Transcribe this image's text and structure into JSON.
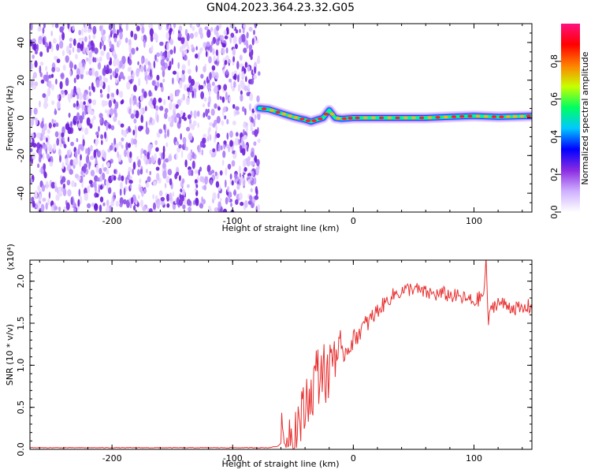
{
  "figure": {
    "title": "GN04.2023.364.23.32.G05"
  },
  "chart_data": [
    {
      "type": "heatmap",
      "title": "GN04.2023.364.23.32.G05",
      "xlabel": "Height of straight line (km)",
      "ylabel": "Frequency (Hz)",
      "xlim": [
        -268,
        148
      ],
      "ylim": [
        -50,
        50
      ],
      "x_ticks": [
        -200,
        -100,
        0,
        100
      ],
      "x_tick_labels": [
        "-200",
        "-100",
        "0",
        "100"
      ],
      "y_ticks": [
        -40,
        -20,
        0,
        20,
        40
      ],
      "y_tick_labels": [
        "-40",
        "-20",
        "0",
        "20",
        "40"
      ],
      "noise_region_x": [
        -268,
        -78
      ],
      "signal_track": {
        "x": [
          -78,
          -70,
          -60,
          -50,
          -40,
          -35,
          -30,
          -25,
          -20,
          -15,
          -10,
          0,
          20,
          40,
          60,
          80,
          100,
          120,
          148
        ],
        "frequency": [
          5,
          4.5,
          2.5,
          0.5,
          -1,
          -2,
          -1,
          0,
          4,
          0,
          -0.5,
          0,
          0,
          0,
          0,
          0.5,
          1,
          0.5,
          1
        ]
      },
      "colorbar": {
        "label": "Normalized spectral amplitude",
        "range": [
          0,
          1
        ],
        "ticks": [
          0,
          0.2,
          0.4,
          0.6,
          0.8
        ],
        "tick_labels": [
          "0.0",
          "0.2",
          "0.4",
          "0.6",
          "0.8"
        ],
        "colors": [
          "#ffffff",
          "#cfb0ff",
          "#8a2be2",
          "#0000ff",
          "#00c8ff",
          "#00ff60",
          "#c8ff00",
          "#ff8000",
          "#ff0000",
          "#ff1080"
        ]
      },
      "grid": false
    },
    {
      "type": "line",
      "xlabel": "Height of straight line (km)",
      "ylabel": "SNR (10 * v/v)",
      "y_multiplier_label": "(x10⁴)",
      "xlim": [
        -268,
        148
      ],
      "ylim": [
        0,
        2.25
      ],
      "x_ticks": [
        -200,
        -100,
        0,
        100
      ],
      "x_tick_labels": [
        "-200",
        "-100",
        "0",
        "100"
      ],
      "y_ticks": [
        0,
        0.5,
        1.0,
        1.5,
        2.0
      ],
      "y_tick_labels": [
        "0.0",
        "0.5",
        "1.0",
        "1.5",
        "2.0"
      ],
      "series": [
        {
          "color": "#e83030",
          "x": [
            -268,
            -200,
            -150,
            -100,
            -70,
            -62,
            -58,
            -55,
            -50,
            -45,
            -40,
            -38,
            -35,
            -32,
            -30,
            -28,
            -25,
            -22,
            -20,
            -18,
            -15,
            -12,
            -10,
            -5,
            0,
            5,
            10,
            15,
            20,
            25,
            30,
            35,
            40,
            45,
            50,
            55,
            60,
            65,
            70,
            75,
            80,
            85,
            90,
            95,
            100,
            105,
            108,
            110,
            112,
            115,
            120,
            125,
            130,
            135,
            140,
            145,
            148
          ],
          "y": [
            0.02,
            0.02,
            0.02,
            0.02,
            0.02,
            0.04,
            0.12,
            0.15,
            0.2,
            0.35,
            0.45,
            0.7,
            0.6,
            0.85,
            0.95,
            0.8,
            1.1,
            0.7,
            1.0,
            1.15,
            1.2,
            1.05,
            1.1,
            1.2,
            1.3,
            1.4,
            1.48,
            1.55,
            1.65,
            1.72,
            1.8,
            1.85,
            1.88,
            1.9,
            1.92,
            1.88,
            1.86,
            1.85,
            1.84,
            1.85,
            1.83,
            1.82,
            1.8,
            1.78,
            1.75,
            1.8,
            1.85,
            2.22,
            1.5,
            1.7,
            1.75,
            1.72,
            1.7,
            1.68,
            1.65,
            1.7,
            1.67
          ]
        }
      ],
      "grid": false
    }
  ]
}
